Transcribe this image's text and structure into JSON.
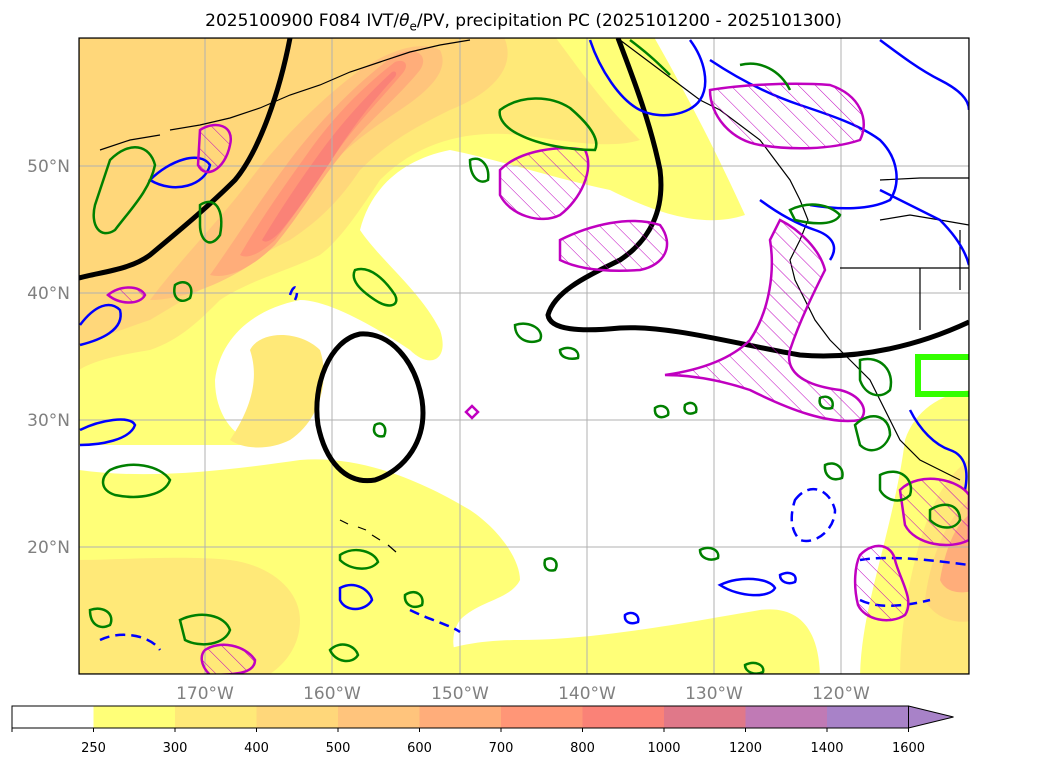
{
  "title": {
    "prefix": "2025100900 F084 IVT/",
    "theta": "θ",
    "theta_sub": "e",
    "suffix": "/PV, precipitation PC (2025101200 - 2025101300)"
  },
  "map": {
    "region": "North Pacific / West Coast of North America",
    "lat_labels": [
      "50°N",
      "40°N",
      "30°N",
      "20°N"
    ],
    "lon_labels": [
      "170°W",
      "160°W",
      "150°W",
      "140°W",
      "130°W",
      "120°W"
    ],
    "grid": true,
    "fields": {
      "ivt_fill": "yellow-orange-red filled contours (IVT)",
      "theta_e": "black thick contours",
      "pv_solid": "blue solid contours",
      "pv_dashed": "blue dashed contours",
      "precip_pc": "magenta hatched contours",
      "green_contours": "green contours",
      "box": "bright green rectangle near Southern California"
    }
  },
  "colorbar": {
    "ticks": [
      "250",
      "300",
      "400",
      "500",
      "600",
      "700",
      "800",
      "1000",
      "1200",
      "1400",
      "1600"
    ],
    "colors": [
      "#ffffff",
      "#ffff78",
      "#ffe978",
      "#ffd77a",
      "#ffc47c",
      "#ffad7a",
      "#ff9677",
      "#fa8277",
      "#e07889",
      "#c07ab5",
      "#a882c8"
    ],
    "extend": "max"
  },
  "colors": {
    "theta_e": "#000000",
    "pv": "#0000ff",
    "precip": "#c000c0",
    "green": "#008000",
    "box": "#33ff00"
  }
}
